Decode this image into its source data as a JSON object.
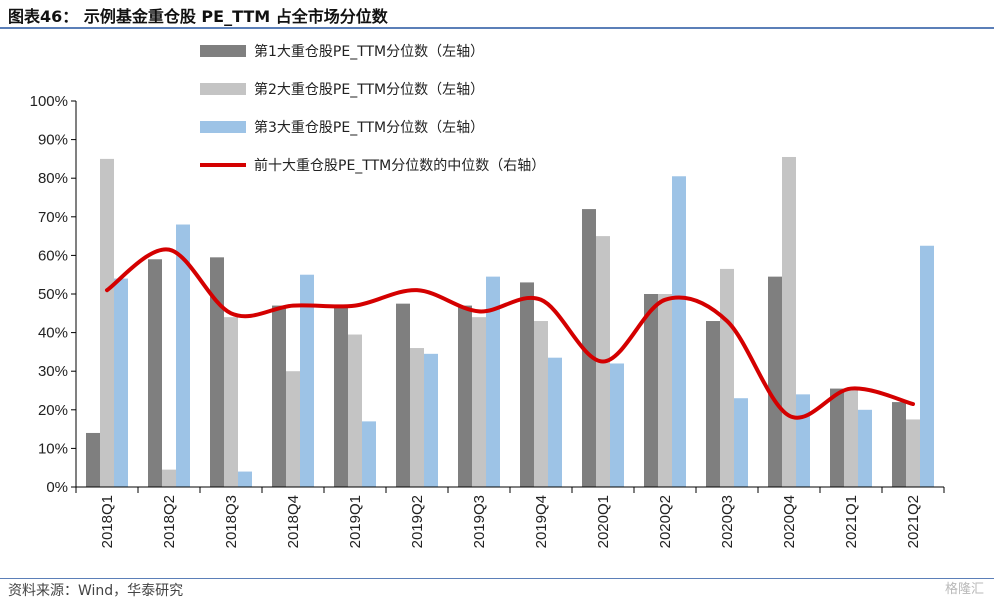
{
  "title": "图表46： 示例基金重仓股 PE_TTM 占全市场分位数",
  "source": "资料来源：Wind，华泰研究",
  "watermark": "格隆汇",
  "chart_data": {
    "type": "bar",
    "categories": [
      "2018Q1",
      "2018Q2",
      "2018Q3",
      "2018Q4",
      "2019Q1",
      "2019Q2",
      "2019Q3",
      "2019Q4",
      "2020Q1",
      "2020Q2",
      "2020Q3",
      "2020Q4",
      "2021Q1",
      "2021Q2"
    ],
    "ylim": [
      0,
      100
    ],
    "yticks": [
      0,
      10,
      20,
      30,
      40,
      50,
      60,
      70,
      80,
      90,
      100
    ],
    "ytick_labels": [
      "0%",
      "10%",
      "20%",
      "30%",
      "40%",
      "50%",
      "60%",
      "70%",
      "80%",
      "90%",
      "100%"
    ],
    "legend_position": "top",
    "grid": false,
    "series": [
      {
        "name": "第1大重仓股PE_TTM分位数（左轴）",
        "kind": "bar",
        "color": "#7f7f7f",
        "values": [
          14,
          59,
          59.5,
          47,
          47,
          47.5,
          47,
          53,
          72,
          50,
          43,
          54.5,
          25.5,
          22
        ]
      },
      {
        "name": "第2大重仓股PE_TTM分位数（左轴）",
        "kind": "bar",
        "color": "#c4c4c4",
        "values": [
          85,
          4.5,
          44,
          30,
          39.5,
          36,
          44,
          43,
          65,
          50,
          56.5,
          85.5,
          25.5,
          17.5
        ]
      },
      {
        "name": "第3大重仓股PE_TTM分位数（左轴）",
        "kind": "bar",
        "color": "#9dc3e6",
        "values": [
          54,
          68,
          4,
          55,
          17,
          34.5,
          54.5,
          33.5,
          32,
          80.5,
          23,
          24,
          20,
          62.5
        ]
      },
      {
        "name": "前十大重仓股PE_TTM分位数的中位数（右轴）",
        "kind": "line",
        "color": "#d40000",
        "values": [
          51,
          61.5,
          45,
          47,
          47,
          51,
          45.5,
          48.5,
          32.5,
          48.5,
          43,
          18.5,
          25.5,
          21.5
        ]
      }
    ]
  }
}
